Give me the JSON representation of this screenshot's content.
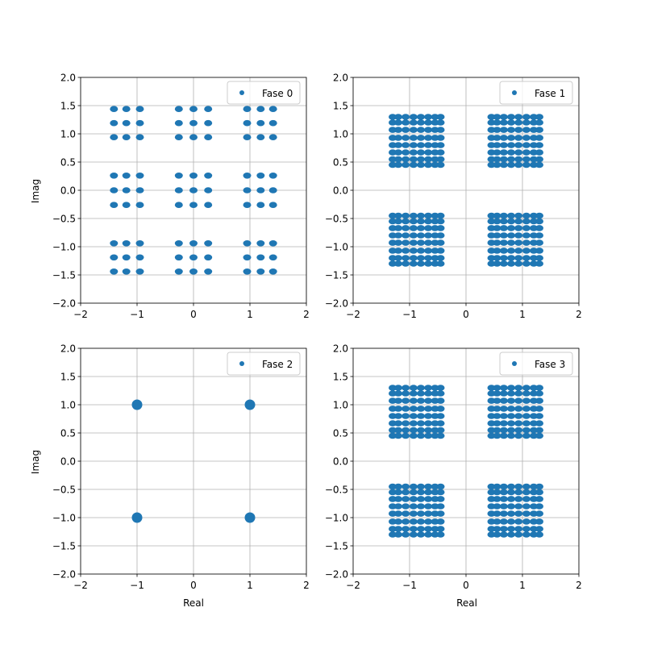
{
  "chart_data": [
    {
      "type": "scatter",
      "title": "",
      "xlabel": "",
      "ylabel": "Imag",
      "xlim": [
        -2,
        2
      ],
      "ylim": [
        -2,
        2
      ],
      "xticks": [
        "−2",
        "−1",
        "0",
        "1",
        "2"
      ],
      "yticks": [
        "−2.0",
        "−1.5",
        "−1.0",
        "−0.5",
        "0.0",
        "0.5",
        "1.0",
        "1.5",
        "2.0"
      ],
      "grid": true,
      "legend": "upper-right",
      "color": "#1f77b4",
      "series": [
        {
          "name": "Fase 0",
          "x_levels": [
            -1.41,
            -1.19,
            -0.95,
            -0.26,
            0.0,
            0.26,
            0.95,
            1.19,
            1.41
          ],
          "y_levels": [
            -1.44,
            -1.19,
            -0.94,
            -0.26,
            0.0,
            0.26,
            0.94,
            1.19,
            1.44
          ]
        }
      ]
    },
    {
      "type": "scatter",
      "title": "",
      "xlabel": "",
      "ylabel": "",
      "xlim": [
        -2,
        2
      ],
      "ylim": [
        -2,
        2
      ],
      "xticks": [
        "−2",
        "−1",
        "0",
        "1",
        "2"
      ],
      "yticks": [
        "−2.0",
        "−1.5",
        "−1.0",
        "−0.5",
        "0.0",
        "0.5",
        "1.0",
        "1.5",
        "2.0"
      ],
      "grid": true,
      "legend": "upper-right",
      "color": "#1f77b4",
      "series": [
        {
          "name": "Fase 1",
          "x_levels": [
            -1.3,
            -1.2,
            -1.07,
            -0.93,
            -0.8,
            -0.67,
            -0.55,
            -0.45,
            0.45,
            0.55,
            0.67,
            0.8,
            0.93,
            1.07,
            1.2,
            1.3
          ],
          "y_levels": [
            -1.3,
            -1.2,
            -1.07,
            -0.93,
            -0.8,
            -0.67,
            -0.55,
            -0.45,
            0.45,
            0.55,
            0.67,
            0.8,
            0.93,
            1.07,
            1.2,
            1.3
          ]
        }
      ]
    },
    {
      "type": "scatter",
      "title": "",
      "xlabel": "Real",
      "ylabel": "Imag",
      "xlim": [
        -2,
        2
      ],
      "ylim": [
        -2,
        2
      ],
      "xticks": [
        "−2",
        "−1",
        "0",
        "1",
        "2"
      ],
      "yticks": [
        "−2.0",
        "−1.5",
        "−1.0",
        "−0.5",
        "0.0",
        "0.5",
        "1.0",
        "1.5",
        "2.0"
      ],
      "grid": true,
      "legend": "upper-right",
      "color": "#1f77b4",
      "series": [
        {
          "name": "Fase 2",
          "points": [
            [
              -1,
              1
            ],
            [
              1,
              1
            ],
            [
              -1,
              -1
            ],
            [
              1,
              -1
            ]
          ]
        }
      ]
    },
    {
      "type": "scatter",
      "title": "",
      "xlabel": "Real",
      "ylabel": "",
      "xlim": [
        -2,
        2
      ],
      "ylim": [
        -2,
        2
      ],
      "xticks": [
        "−2",
        "−1",
        "0",
        "1",
        "2"
      ],
      "yticks": [
        "−2.0",
        "−1.5",
        "−1.0",
        "−0.5",
        "0.0",
        "0.5",
        "1.0",
        "1.5",
        "2.0"
      ],
      "grid": true,
      "legend": "upper-right",
      "color": "#1f77b4",
      "series": [
        {
          "name": "Fase 3",
          "x_levels": [
            -1.3,
            -1.2,
            -1.07,
            -0.93,
            -0.8,
            -0.67,
            -0.55,
            -0.45,
            0.45,
            0.55,
            0.67,
            0.8,
            0.93,
            1.07,
            1.2,
            1.3
          ],
          "y_levels": [
            -1.3,
            -1.2,
            -1.07,
            -0.93,
            -0.8,
            -0.67,
            -0.55,
            -0.45,
            0.45,
            0.55,
            0.67,
            0.8,
            0.93,
            1.07,
            1.2,
            1.3
          ]
        }
      ]
    }
  ]
}
